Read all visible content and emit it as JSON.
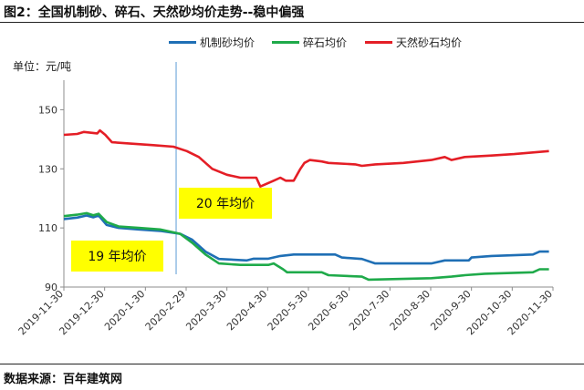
{
  "title": "图2：全国机制砂、碎石、天然砂均价走势--稳中偏强",
  "unit_label": "单位：元/吨",
  "footer": "数据来源：百年建筑网",
  "annotations": {
    "label_2019": "19 年均价",
    "label_2020": "20 年均价"
  },
  "colors": {
    "manufactured_sand": "#1f6fb5",
    "crushed_stone": "#1faa4a",
    "natural_sand": "#e41e26",
    "callout": "#ffff00",
    "divider": "#5b9bd5"
  },
  "chart_data": {
    "type": "line",
    "ylim": [
      90,
      160
    ],
    "yticks": [
      90,
      110,
      130,
      150
    ],
    "grid": false,
    "legend_position": "top",
    "divider_date": "2020-02-22",
    "xtick_labels": [
      "2019-11-30",
      "2019-12-30",
      "2020-1-30",
      "2020-2-29",
      "2020-3-30",
      "2020-4-30",
      "2020-5-30",
      "2020-6-30",
      "2020-7-30",
      "2020-8-30",
      "2020-9-30",
      "2020-10-30",
      "2020-11-30"
    ],
    "series": [
      {
        "name": "机制砂均价",
        "points": [
          [
            "2019-11-30",
            113
          ],
          [
            "2019-12-10",
            113.5
          ],
          [
            "2019-12-17",
            114.2
          ],
          [
            "2019-12-22",
            113.6
          ],
          [
            "2019-12-26",
            114.2
          ],
          [
            "2020-01-01",
            111
          ],
          [
            "2020-01-10",
            110
          ],
          [
            "2020-01-25",
            109.5
          ],
          [
            "2020-02-10",
            109
          ],
          [
            "2020-02-25",
            108
          ],
          [
            "2020-03-05",
            106
          ],
          [
            "2020-03-15",
            102
          ],
          [
            "2020-03-25",
            99.5
          ],
          [
            "2020-04-15",
            99
          ],
          [
            "2020-04-20",
            99.6
          ],
          [
            "2020-05-01",
            99.6
          ],
          [
            "2020-05-10",
            100.5
          ],
          [
            "2020-05-20",
            101
          ],
          [
            "2020-06-20",
            101
          ],
          [
            "2020-06-25",
            100
          ],
          [
            "2020-07-10",
            99.5
          ],
          [
            "2020-07-20",
            98
          ],
          [
            "2020-07-31",
            98
          ],
          [
            "2020-08-31",
            98
          ],
          [
            "2020-09-10",
            99
          ],
          [
            "2020-09-28",
            99
          ],
          [
            "2020-09-30",
            100
          ],
          [
            "2020-10-15",
            100.5
          ],
          [
            "2020-11-15",
            101
          ],
          [
            "2020-11-20",
            102
          ],
          [
            "2020-11-27",
            102
          ]
        ]
      },
      {
        "name": "碎石均价",
        "points": [
          [
            "2019-11-30",
            114
          ],
          [
            "2019-12-10",
            114.5
          ],
          [
            "2019-12-17",
            115
          ],
          [
            "2019-12-22",
            114.3
          ],
          [
            "2019-12-26",
            114.8
          ],
          [
            "2020-01-01",
            112
          ],
          [
            "2020-01-10",
            110.5
          ],
          [
            "2020-01-25",
            110
          ],
          [
            "2020-02-10",
            109.5
          ],
          [
            "2020-02-25",
            108
          ],
          [
            "2020-03-05",
            105
          ],
          [
            "2020-03-15",
            101
          ],
          [
            "2020-03-25",
            98
          ],
          [
            "2020-04-10",
            97.5
          ],
          [
            "2020-05-01",
            97.5
          ],
          [
            "2020-05-05",
            98
          ],
          [
            "2020-05-12",
            96
          ],
          [
            "2020-05-15",
            95
          ],
          [
            "2020-06-10",
            95
          ],
          [
            "2020-06-15",
            94
          ],
          [
            "2020-07-10",
            93.5
          ],
          [
            "2020-07-15",
            92.5
          ],
          [
            "2020-08-31",
            93
          ],
          [
            "2020-09-15",
            93.5
          ],
          [
            "2020-09-25",
            94
          ],
          [
            "2020-10-10",
            94.5
          ],
          [
            "2020-11-15",
            95
          ],
          [
            "2020-11-20",
            96
          ],
          [
            "2020-11-27",
            96
          ]
        ]
      },
      {
        "name": "天然砂石均价",
        "points": [
          [
            "2019-11-30",
            141.5
          ],
          [
            "2019-12-10",
            141.8
          ],
          [
            "2019-12-15",
            142.5
          ],
          [
            "2019-12-25",
            142
          ],
          [
            "2019-12-27",
            143
          ],
          [
            "2019-12-31",
            141.5
          ],
          [
            "2020-01-05",
            139
          ],
          [
            "2020-01-20",
            138.5
          ],
          [
            "2020-02-05",
            138
          ],
          [
            "2020-02-20",
            137.5
          ],
          [
            "2020-03-01",
            136
          ],
          [
            "2020-03-10",
            134
          ],
          [
            "2020-03-20",
            130
          ],
          [
            "2020-03-31",
            128
          ],
          [
            "2020-04-10",
            127
          ],
          [
            "2020-04-22",
            127
          ],
          [
            "2020-04-25",
            124
          ],
          [
            "2020-05-05",
            126
          ],
          [
            "2020-05-10",
            127
          ],
          [
            "2020-05-14",
            126
          ],
          [
            "2020-05-20",
            126
          ],
          [
            "2020-05-25",
            130
          ],
          [
            "2020-05-28",
            132
          ],
          [
            "2020-06-01",
            133
          ],
          [
            "2020-06-10",
            132.5
          ],
          [
            "2020-06-15",
            132
          ],
          [
            "2020-07-05",
            131.5
          ],
          [
            "2020-07-10",
            131
          ],
          [
            "2020-07-20",
            131.5
          ],
          [
            "2020-08-10",
            132
          ],
          [
            "2020-08-31",
            133
          ],
          [
            "2020-09-10",
            134
          ],
          [
            "2020-09-15",
            133
          ],
          [
            "2020-09-25",
            134
          ],
          [
            "2020-10-15",
            134.5
          ],
          [
            "2020-11-01",
            135
          ],
          [
            "2020-11-27",
            136
          ]
        ]
      }
    ]
  }
}
